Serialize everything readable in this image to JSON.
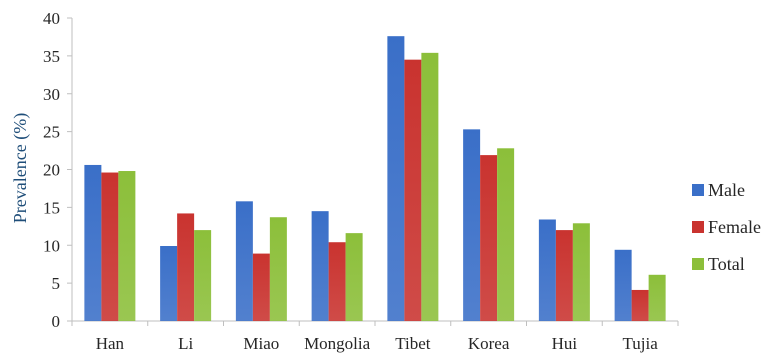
{
  "chart_data": {
    "type": "bar",
    "title": "",
    "xlabel": "",
    "ylabel": "Prevalence (%)",
    "ylim": [
      0,
      40
    ],
    "yticks": [
      0,
      5,
      10,
      15,
      20,
      25,
      30,
      35,
      40
    ],
    "grid": false,
    "legend_position": "right",
    "categories": [
      "Han",
      "Li",
      "Miao",
      "Mongolia",
      "Tibet",
      "Korea",
      "Hui",
      "Tujia"
    ],
    "series": [
      {
        "name": "Male",
        "color": "#3a6fc8",
        "values": [
          20.6,
          9.9,
          15.8,
          14.5,
          37.6,
          25.3,
          13.4,
          9.4
        ]
      },
      {
        "name": "Female",
        "color": "#c9332f",
        "values": [
          19.6,
          14.2,
          8.9,
          10.4,
          34.5,
          21.9,
          12.0,
          4.1
        ]
      },
      {
        "name": "Total",
        "color": "#8cbf3a",
        "values": [
          19.8,
          12.0,
          13.7,
          11.6,
          35.4,
          22.8,
          12.9,
          6.1
        ]
      }
    ]
  }
}
